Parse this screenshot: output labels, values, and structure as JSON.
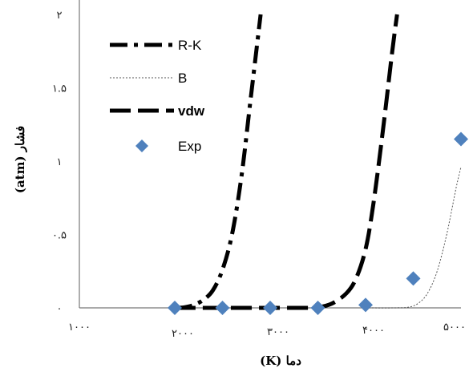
{
  "chart_data": {
    "type": "line",
    "title": "",
    "xlabel": "دما (K)",
    "ylabel": "فشار (atm)",
    "xlim": [
      1000,
      5000
    ],
    "ylim": [
      0,
      2
    ],
    "x_ticks": [
      1000,
      2000,
      3000,
      4000,
      5000
    ],
    "y_ticks": [
      0,
      0.5,
      1,
      1.5,
      2
    ],
    "x_tick_labels": [
      "۱۰۰۰",
      "۲۰۰۰",
      "۳۰۰۰",
      "۴۰۰۰",
      "۵۰۰۰"
    ],
    "y_tick_labels": [
      "۰",
      "۰.۵",
      "۱",
      "۱.۵",
      "۲"
    ],
    "grid": false,
    "legend_position": "top-left",
    "series": [
      {
        "name": "R-K",
        "style": "long-dash-dot",
        "color": "#000000",
        "points": [
          [
            2000,
            0
          ],
          [
            2100,
            0.004
          ],
          [
            2200,
            0.02
          ],
          [
            2300,
            0.055
          ],
          [
            2400,
            0.12
          ],
          [
            2500,
            0.26
          ],
          [
            2600,
            0.5
          ],
          [
            2700,
            0.9
          ],
          [
            2800,
            1.45
          ],
          [
            2900,
            2.0
          ]
        ]
      },
      {
        "name": "B",
        "style": "thin-dotted",
        "color": "#555555",
        "points": [
          [
            4000,
            0
          ],
          [
            4300,
            0
          ],
          [
            4450,
            0.005
          ],
          [
            4550,
            0.03
          ],
          [
            4650,
            0.1
          ],
          [
            4750,
            0.25
          ],
          [
            4850,
            0.5
          ],
          [
            4950,
            0.82
          ],
          [
            5000,
            0.96
          ]
        ]
      },
      {
        "name": "vdw",
        "style": "long-dash",
        "color": "#000000",
        "points": [
          [
            2000,
            0
          ],
          [
            3300,
            0
          ],
          [
            3500,
            0.004
          ],
          [
            3650,
            0.03
          ],
          [
            3800,
            0.1
          ],
          [
            3900,
            0.2
          ],
          [
            4000,
            0.4
          ],
          [
            4080,
            0.7
          ],
          [
            4180,
            1.2
          ],
          [
            4280,
            1.75
          ],
          [
            4330,
            2.0
          ]
        ]
      },
      {
        "name": "Exp",
        "style": "diamond-marker",
        "color": "#4F81BD",
        "points": [
          [
            2000,
            0
          ],
          [
            2500,
            0
          ],
          [
            3000,
            0
          ],
          [
            3500,
            0
          ],
          [
            4000,
            0.02
          ],
          [
            4500,
            0.2
          ],
          [
            5000,
            1.15
          ]
        ]
      }
    ]
  }
}
